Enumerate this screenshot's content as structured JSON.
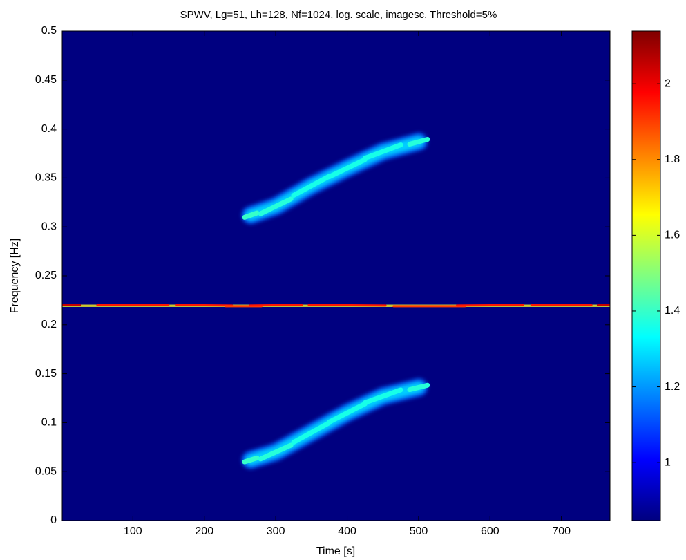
{
  "chart_data": {
    "type": "spectrogram",
    "title": "SPWV, Lg=51, Lh=128, Nf=1024, log. scale, imagesc, Threshold=5%",
    "x_label": "Time [s]",
    "y_label": "Frequency [Hz]",
    "xlim": [
      1,
      768
    ],
    "ylim": [
      0,
      0.5
    ],
    "xticks": [
      100,
      200,
      300,
      400,
      500,
      600,
      700
    ],
    "yticks": [
      0,
      0.05,
      0.1,
      0.15,
      0.2,
      0.25,
      0.3,
      0.35,
      0.4,
      0.45,
      0.5
    ],
    "clim": [
      0.847,
      2.139
    ],
    "cticks": [
      1,
      1.2,
      1.4,
      1.6,
      1.8,
      2
    ],
    "colormap": "jet",
    "series": [
      {
        "x": [
          1,
          100,
          200,
          255,
          300,
          400,
          515,
          600,
          700,
          768
        ],
        "y": [
          0.22,
          0.22,
          0.22,
          0.219,
          0.22,
          0.22,
          0.219,
          0.22,
          0.22,
          0.22
        ],
        "values": [
          2.05,
          1.95,
          1.95,
          1.9,
          1.95,
          1.95,
          1.9,
          1.95,
          1.95,
          2.05
        ]
      },
      {
        "x": [
          265,
          300,
          350,
          400,
          450,
          500
        ],
        "y": [
          0.312,
          0.321,
          0.342,
          0.36,
          0.377,
          0.387
        ],
        "values": [
          1.4,
          1.38,
          1.36,
          1.36,
          1.36,
          1.38
        ]
      },
      {
        "x": [
          265,
          300,
          350,
          400,
          450,
          500
        ],
        "y": [
          0.062,
          0.07,
          0.09,
          0.11,
          0.127,
          0.136
        ],
        "values": [
          1.4,
          1.38,
          1.36,
          1.36,
          1.36,
          1.38
        ]
      }
    ]
  }
}
